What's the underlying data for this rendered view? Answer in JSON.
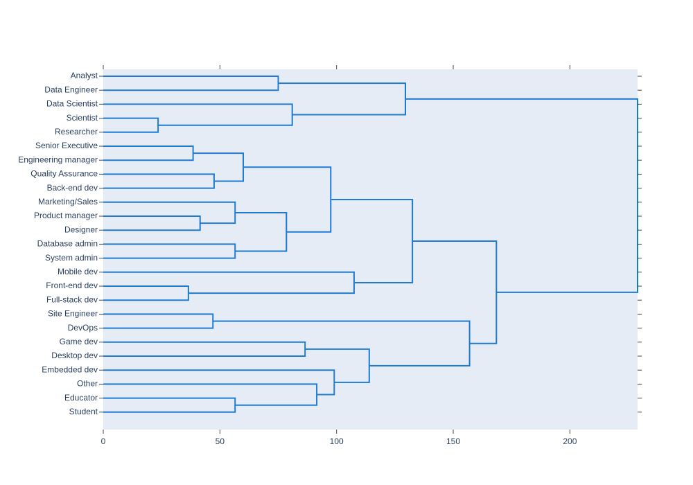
{
  "chart_data": {
    "type": "dendrogram",
    "orientation": "horizontal",
    "xlim": [
      0,
      229
    ],
    "x_ticks": [
      0,
      50,
      100,
      150,
      200
    ],
    "leaves": [
      "Analyst",
      "Data Engineer",
      "Data Scientist",
      "Scientist",
      "Researcher",
      "Senior Executive",
      "Engineering manager",
      "Quality Assurance",
      "Back-end dev",
      "Marketing/Sales",
      "Product manager",
      "Designer",
      "Database admin",
      "System admin",
      "Mobile dev",
      "Front-end dev",
      "Full-stack dev",
      "Site Engineer",
      "DevOps",
      "Game dev",
      "Desktop dev",
      "Embedded dev",
      "Other",
      "Educator",
      "Student"
    ],
    "merges": [
      {
        "a": "Analyst",
        "b": "Data Engineer",
        "height": 75
      },
      {
        "a": "Scientist",
        "b": "Researcher",
        "height": 23.5
      },
      {
        "a": "Data Scientist",
        "b": "Scientist+Researcher",
        "height": 81
      },
      {
        "a": "Analyst+Data Engineer",
        "b": "Data Scientist group",
        "height": 129.5
      },
      {
        "a": "Senior Executive",
        "b": "Engineering manager",
        "height": 38.5
      },
      {
        "a": "Quality Assurance",
        "b": "Back-end dev",
        "height": 47.5
      },
      {
        "a": "Senior Executive+Engineering manager",
        "b": "Quality Assurance+Back-end dev",
        "height": 60
      },
      {
        "a": "Product manager",
        "b": "Designer",
        "height": 41.5
      },
      {
        "a": "Marketing/Sales",
        "b": "Product manager+Designer",
        "height": 56.5
      },
      {
        "a": "Database admin",
        "b": "System admin",
        "height": 56.5
      },
      {
        "a": "Marketing/Sales group",
        "b": "Database admin+System admin",
        "height": 78.5
      },
      {
        "a": "Management group",
        "b": "Product/Admin group",
        "height": 97.5
      },
      {
        "a": "Front-end dev",
        "b": "Full-stack dev",
        "height": 36.5
      },
      {
        "a": "Mobile dev",
        "b": "Front-end dev+Full-stack dev",
        "height": 107.5
      },
      {
        "a": "Back-office group",
        "b": "Web/Mobile group",
        "height": 132.5
      },
      {
        "a": "Site Engineer",
        "b": "DevOps",
        "height": 47
      },
      {
        "a": "Game dev",
        "b": "Desktop dev",
        "height": 86.5
      },
      {
        "a": "Educator",
        "b": "Student",
        "height": 56.5
      },
      {
        "a": "Other",
        "b": "Educator+Student",
        "height": 91.5
      },
      {
        "a": "Embedded dev",
        "b": "Other group",
        "height": 99
      },
      {
        "a": "Game dev+Desktop dev",
        "b": "Embedded group",
        "height": 114
      },
      {
        "a": "Site Engineer+DevOps",
        "b": "Game/Embedded group",
        "height": 157
      },
      {
        "a": "Developer group",
        "b": "Ops/Other group",
        "height": 168.5
      },
      {
        "a": "Data group",
        "b": "Everything else",
        "height": 229
      }
    ],
    "colors": {
      "line": "#1f7bd1",
      "final_link": "#0e8a8a",
      "plot_bg": "#e5ecf6",
      "axis_text": "#2a3f5f",
      "tick": "#444444"
    }
  }
}
